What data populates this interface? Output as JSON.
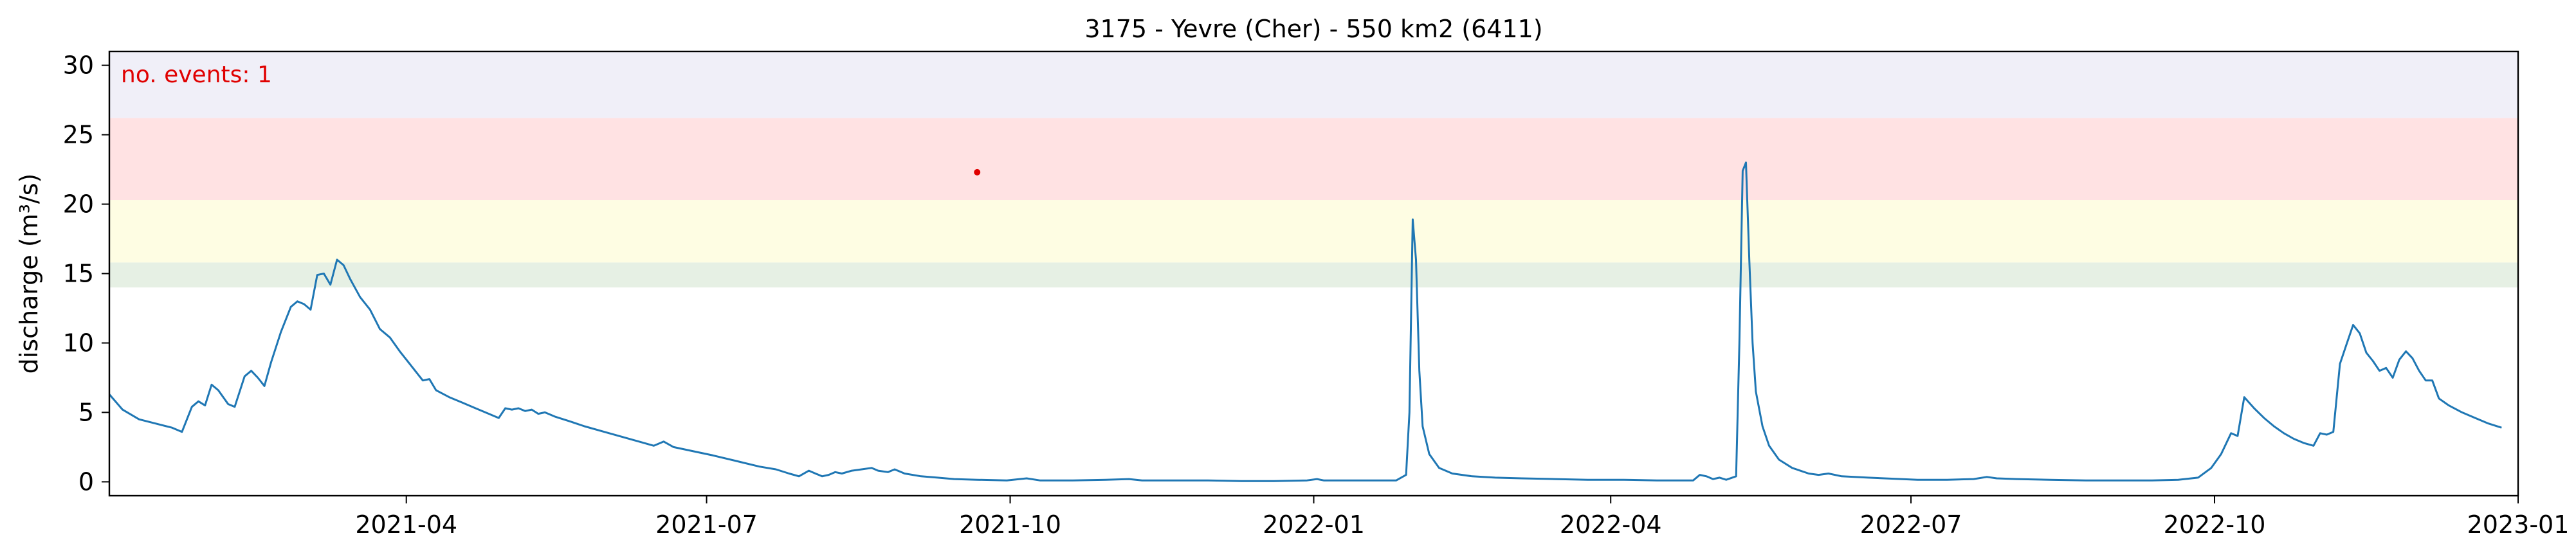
{
  "chart_data": {
    "type": "line",
    "title": "3175 - Yevre (Cher) - 550 km2 (6411)",
    "xlabel": "",
    "ylabel": "discharge (m³/s)",
    "xlim": [
      "2021-01-01",
      "2023-01-01"
    ],
    "ylim": [
      -1,
      31
    ],
    "x_ticks": [
      "2021-04",
      "2021-07",
      "2021-10",
      "2022-01",
      "2022-04",
      "2022-07",
      "2022-10",
      "2023-01"
    ],
    "y_ticks": [
      0,
      5,
      10,
      15,
      20,
      25,
      30
    ],
    "grid": false,
    "legend": "none",
    "annotation": {
      "text": "no. events: 1",
      "color": "#e00000",
      "placement": "top-left"
    },
    "threshold_bands": [
      {
        "from": 14.0,
        "to": 15.8,
        "color": "#e6f0e4"
      },
      {
        "from": 15.8,
        "to": 20.3,
        "color": "#fefde3"
      },
      {
        "from": 20.3,
        "to": 26.2,
        "color": "#ffe2e3"
      },
      {
        "from": 26.2,
        "to": 31.0,
        "color": "#f0eff8"
      }
    ],
    "events": [
      {
        "x": "2021-09-21",
        "y": 22.3,
        "color": "#e00000"
      }
    ],
    "series": [
      {
        "color": "#1f77b4",
        "points": [
          [
            "2021-01-01",
            6.3
          ],
          [
            "2021-01-05",
            5.2
          ],
          [
            "2021-01-10",
            4.5
          ],
          [
            "2021-01-15",
            4.2
          ],
          [
            "2021-01-20",
            3.9
          ],
          [
            "2021-01-23",
            3.6
          ],
          [
            "2021-01-26",
            5.4
          ],
          [
            "2021-01-28",
            5.8
          ],
          [
            "2021-01-30",
            5.5
          ],
          [
            "2021-02-01",
            7.0
          ],
          [
            "2021-02-03",
            6.6
          ],
          [
            "2021-02-06",
            5.6
          ],
          [
            "2021-02-08",
            5.4
          ],
          [
            "2021-02-11",
            7.6
          ],
          [
            "2021-02-13",
            8.0
          ],
          [
            "2021-02-15",
            7.5
          ],
          [
            "2021-02-17",
            6.9
          ],
          [
            "2021-02-19",
            8.6
          ],
          [
            "2021-02-22",
            10.8
          ],
          [
            "2021-02-25",
            12.6
          ],
          [
            "2021-02-27",
            13.0
          ],
          [
            "2021-03-01",
            12.8
          ],
          [
            "2021-03-03",
            12.4
          ],
          [
            "2021-03-05",
            14.9
          ],
          [
            "2021-03-07",
            15.0
          ],
          [
            "2021-03-09",
            14.2
          ],
          [
            "2021-03-11",
            16.0
          ],
          [
            "2021-03-13",
            15.6
          ],
          [
            "2021-03-15",
            14.6
          ],
          [
            "2021-03-18",
            13.3
          ],
          [
            "2021-03-21",
            12.4
          ],
          [
            "2021-03-24",
            11.0
          ],
          [
            "2021-03-27",
            10.4
          ],
          [
            "2021-03-30",
            9.4
          ],
          [
            "2021-04-03",
            8.2
          ],
          [
            "2021-04-06",
            7.3
          ],
          [
            "2021-04-08",
            7.4
          ],
          [
            "2021-04-10",
            6.6
          ],
          [
            "2021-04-14",
            6.1
          ],
          [
            "2021-04-18",
            5.7
          ],
          [
            "2021-04-22",
            5.3
          ],
          [
            "2021-04-26",
            4.9
          ],
          [
            "2021-04-29",
            4.6
          ],
          [
            "2021-05-01",
            5.3
          ],
          [
            "2021-05-03",
            5.2
          ],
          [
            "2021-05-05",
            5.3
          ],
          [
            "2021-05-07",
            5.1
          ],
          [
            "2021-05-09",
            5.2
          ],
          [
            "2021-05-11",
            4.9
          ],
          [
            "2021-05-13",
            5.0
          ],
          [
            "2021-05-16",
            4.7
          ],
          [
            "2021-05-20",
            4.4
          ],
          [
            "2021-05-25",
            4.0
          ],
          [
            "2021-05-31",
            3.6
          ],
          [
            "2021-06-06",
            3.2
          ],
          [
            "2021-06-12",
            2.8
          ],
          [
            "2021-06-15",
            2.6
          ],
          [
            "2021-06-18",
            2.9
          ],
          [
            "2021-06-21",
            2.5
          ],
          [
            "2021-06-27",
            2.2
          ],
          [
            "2021-07-03",
            1.9
          ],
          [
            "2021-07-10",
            1.5
          ],
          [
            "2021-07-17",
            1.1
          ],
          [
            "2021-07-22",
            0.9
          ],
          [
            "2021-07-26",
            0.6
          ],
          [
            "2021-07-29",
            0.4
          ],
          [
            "2021-08-01",
            0.8
          ],
          [
            "2021-08-03",
            0.6
          ],
          [
            "2021-08-05",
            0.4
          ],
          [
            "2021-08-07",
            0.5
          ],
          [
            "2021-08-09",
            0.7
          ],
          [
            "2021-08-11",
            0.6
          ],
          [
            "2021-08-14",
            0.8
          ],
          [
            "2021-08-17",
            0.9
          ],
          [
            "2021-08-20",
            1.0
          ],
          [
            "2021-08-22",
            0.8
          ],
          [
            "2021-08-25",
            0.7
          ],
          [
            "2021-08-27",
            0.9
          ],
          [
            "2021-08-30",
            0.6
          ],
          [
            "2021-09-04",
            0.4
          ],
          [
            "2021-09-09",
            0.3
          ],
          [
            "2021-09-14",
            0.2
          ],
          [
            "2021-09-21",
            0.15
          ],
          [
            "2021-09-30",
            0.1
          ],
          [
            "2021-10-06",
            0.25
          ],
          [
            "2021-10-10",
            0.1
          ],
          [
            "2021-10-20",
            0.1
          ],
          [
            "2021-10-30",
            0.15
          ],
          [
            "2021-11-06",
            0.2
          ],
          [
            "2021-11-10",
            0.1
          ],
          [
            "2021-11-20",
            0.1
          ],
          [
            "2021-11-30",
            0.1
          ],
          [
            "2021-12-10",
            0.05
          ],
          [
            "2021-12-20",
            0.05
          ],
          [
            "2021-12-30",
            0.1
          ],
          [
            "2022-01-02",
            0.2
          ],
          [
            "2022-01-04",
            0.1
          ],
          [
            "2022-01-10",
            0.1
          ],
          [
            "2022-01-16",
            0.1
          ],
          [
            "2022-01-21",
            0.1
          ],
          [
            "2022-01-26",
            0.1
          ],
          [
            "2022-01-29",
            0.5
          ],
          [
            "2022-01-30",
            5.0
          ],
          [
            "2022-01-31",
            18.9
          ],
          [
            "2022-02-01",
            16.0
          ],
          [
            "2022-02-02",
            8.0
          ],
          [
            "2022-02-03",
            4.0
          ],
          [
            "2022-02-05",
            2.0
          ],
          [
            "2022-02-08",
            1.0
          ],
          [
            "2022-02-12",
            0.6
          ],
          [
            "2022-02-18",
            0.4
          ],
          [
            "2022-02-25",
            0.3
          ],
          [
            "2022-03-05",
            0.25
          ],
          [
            "2022-03-15",
            0.2
          ],
          [
            "2022-03-25",
            0.15
          ],
          [
            "2022-04-05",
            0.15
          ],
          [
            "2022-04-15",
            0.1
          ],
          [
            "2022-04-26",
            0.1
          ],
          [
            "2022-04-28",
            0.5
          ],
          [
            "2022-04-30",
            0.4
          ],
          [
            "2022-05-02",
            0.2
          ],
          [
            "2022-05-04",
            0.3
          ],
          [
            "2022-05-06",
            0.15
          ],
          [
            "2022-05-09",
            0.4
          ],
          [
            "2022-05-10",
            10.0
          ],
          [
            "2022-05-11",
            22.4
          ],
          [
            "2022-05-12",
            23.0
          ],
          [
            "2022-05-13",
            16.0
          ],
          [
            "2022-05-14",
            10.0
          ],
          [
            "2022-05-15",
            6.5
          ],
          [
            "2022-05-17",
            4.0
          ],
          [
            "2022-05-19",
            2.6
          ],
          [
            "2022-05-22",
            1.6
          ],
          [
            "2022-05-26",
            1.0
          ],
          [
            "2022-05-31",
            0.6
          ],
          [
            "2022-06-03",
            0.5
          ],
          [
            "2022-06-06",
            0.6
          ],
          [
            "2022-06-10",
            0.4
          ],
          [
            "2022-06-18",
            0.3
          ],
          [
            "2022-06-28",
            0.2
          ],
          [
            "2022-07-03",
            0.15
          ],
          [
            "2022-07-12",
            0.15
          ],
          [
            "2022-07-20",
            0.2
          ],
          [
            "2022-07-24",
            0.35
          ],
          [
            "2022-07-27",
            0.25
          ],
          [
            "2022-08-02",
            0.2
          ],
          [
            "2022-08-12",
            0.15
          ],
          [
            "2022-08-23",
            0.1
          ],
          [
            "2022-09-02",
            0.1
          ],
          [
            "2022-09-12",
            0.1
          ],
          [
            "2022-09-20",
            0.15
          ],
          [
            "2022-09-26",
            0.3
          ],
          [
            "2022-09-30",
            1.0
          ],
          [
            "2022-10-03",
            2.0
          ],
          [
            "2022-10-06",
            3.5
          ],
          [
            "2022-10-08",
            3.3
          ],
          [
            "2022-10-10",
            6.1
          ],
          [
            "2022-10-13",
            5.3
          ],
          [
            "2022-10-16",
            4.6
          ],
          [
            "2022-10-19",
            4.0
          ],
          [
            "2022-10-22",
            3.5
          ],
          [
            "2022-10-25",
            3.1
          ],
          [
            "2022-10-28",
            2.8
          ],
          [
            "2022-10-31",
            2.6
          ],
          [
            "2022-11-02",
            3.5
          ],
          [
            "2022-11-04",
            3.4
          ],
          [
            "2022-11-06",
            3.6
          ],
          [
            "2022-11-08",
            8.5
          ],
          [
            "2022-11-10",
            9.9
          ],
          [
            "2022-11-12",
            11.3
          ],
          [
            "2022-11-14",
            10.7
          ],
          [
            "2022-11-16",
            9.3
          ],
          [
            "2022-11-18",
            8.7
          ],
          [
            "2022-11-20",
            8.0
          ],
          [
            "2022-11-22",
            8.2
          ],
          [
            "2022-11-24",
            7.5
          ],
          [
            "2022-11-26",
            8.8
          ],
          [
            "2022-11-28",
            9.4
          ],
          [
            "2022-11-30",
            8.9
          ],
          [
            "2022-12-02",
            8.0
          ],
          [
            "2022-12-04",
            7.3
          ],
          [
            "2022-12-06",
            7.3
          ],
          [
            "2022-12-08",
            6.0
          ],
          [
            "2022-12-11",
            5.5
          ],
          [
            "2022-12-15",
            5.0
          ],
          [
            "2022-12-19",
            4.6
          ],
          [
            "2022-12-23",
            4.2
          ],
          [
            "2022-12-27",
            3.9
          ]
        ]
      }
    ]
  }
}
